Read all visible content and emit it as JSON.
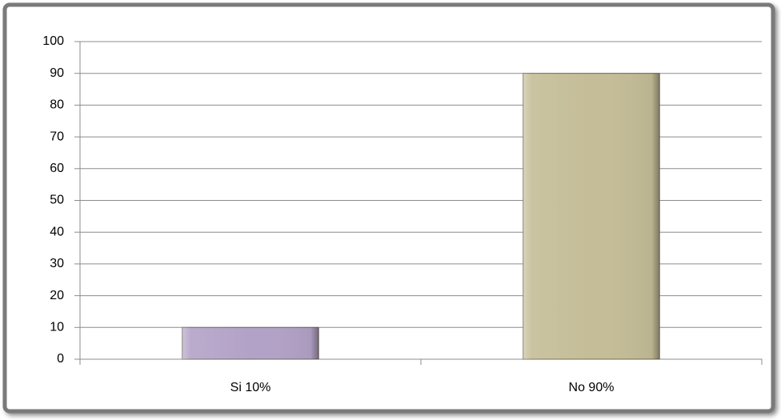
{
  "chart_data": {
    "type": "bar",
    "categories": [
      "Si 10%",
      "No 90%"
    ],
    "values": [
      10,
      90
    ],
    "colors": [
      "#b3a2c7",
      "#c4bd97"
    ],
    "ylim": [
      0,
      100
    ],
    "yticks": [
      0,
      10,
      20,
      30,
      40,
      50,
      60,
      70,
      80,
      90,
      100
    ],
    "grid": true
  }
}
